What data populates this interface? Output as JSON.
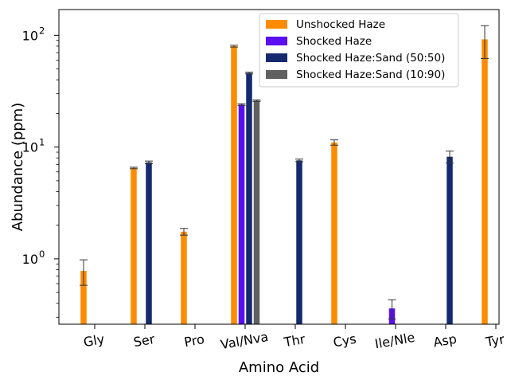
{
  "chart_data": {
    "type": "bar",
    "xlabel": "Amino Acid",
    "ylabel": "Abundance (ppm)",
    "yscale": "log",
    "ylim": [
      0.26,
      170
    ],
    "y_ticks": [
      {
        "value": 1,
        "label": "10",
        "exp": "0"
      },
      {
        "value": 10,
        "label": "10",
        "exp": "1"
      },
      {
        "value": 100,
        "label": "10",
        "exp": "2"
      }
    ],
    "categories": [
      "Gly",
      "Ser",
      "Pro",
      "Val/Nva",
      "Thr",
      "Cys",
      "Ile/Nle",
      "Asp",
      "Tyr"
    ],
    "legend_position": "upper right",
    "series": [
      {
        "name": "Unshocked Haze",
        "color": "#ff8c00",
        "values": [
          0.78,
          6.5,
          1.75,
          80,
          null,
          11,
          null,
          null,
          92
        ],
        "errors": [
          0.2,
          0.1,
          0.12,
          1.5,
          null,
          0.6,
          null,
          null,
          30
        ]
      },
      {
        "name": "Shocked Haze",
        "color": "#5b0ef0",
        "values": [
          null,
          null,
          null,
          24,
          null,
          null,
          0.36,
          null,
          null
        ],
        "errors": [
          null,
          null,
          null,
          0.4,
          null,
          null,
          0.07,
          null,
          null
        ]
      },
      {
        "name": "Shocked Haze:Sand (50:50)",
        "color": "#152a6e",
        "values": [
          null,
          7.3,
          null,
          46,
          7.6,
          null,
          null,
          8.2,
          null
        ],
        "errors": [
          null,
          0.2,
          null,
          0.8,
          0.2,
          null,
          null,
          1.0,
          null
        ]
      },
      {
        "name": "Shocked Haze:Sand (10:90)",
        "color": "#606060",
        "values": [
          null,
          null,
          null,
          26,
          null,
          null,
          null,
          null,
          null
        ],
        "errors": [
          null,
          null,
          null,
          0.4,
          null,
          null,
          null,
          null,
          null
        ]
      }
    ]
  }
}
